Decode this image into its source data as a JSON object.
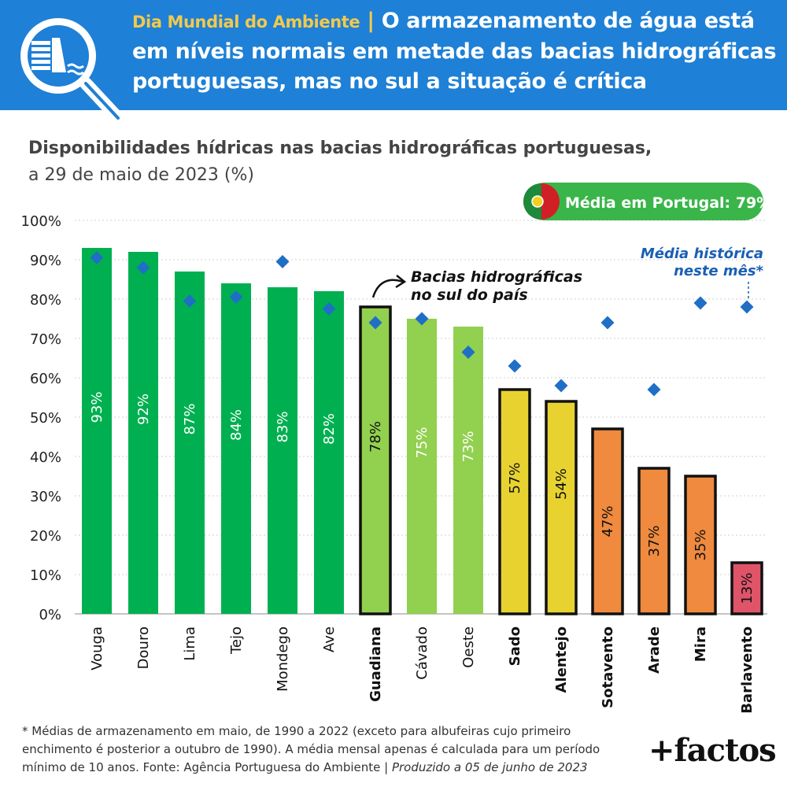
{
  "header": {
    "kicker": "Dia Mundial do Ambiente",
    "separator": "|",
    "title": "O armazenamento de água está em níveis normais em metade das bacias hidrográficas portuguesas, mas no sul a situação é crítica"
  },
  "subtitle": {
    "line1": "Disponibilidades hídricas nas bacias hidrográficas portuguesas,",
    "line2": "a 29 de maio de 2023 (%)"
  },
  "badge": {
    "label": "Média em Portugal: 79%"
  },
  "annotations": {
    "south_line1": "Bacias hidrográficas",
    "south_line2": "no sul do país",
    "hist_line1": "Média histórica",
    "hist_line2": "neste mês*"
  },
  "footnote": {
    "text": "* Médias de armazenamento em maio, de 1990 a 2022 (exceto para albufeiras cujo primeiro enchimento é posterior a outubro de 1990). A média mensal apenas é calculada para um período mínimo de 10 anos. Fonte: Agência Portuguesa do Ambiente | ",
    "produced": "Produzido a 05 de junho de 2023"
  },
  "brand": "+factos",
  "colors": {
    "header_bg": "#1e80d6",
    "kicker": "#f2c94c",
    "dark_green": "#00b050",
    "light_green": "#92d050",
    "yellow": "#e8d230",
    "orange": "#ef8a3e",
    "red": "#e0546a",
    "marker": "#1f6fc5",
    "annotation_blue": "#1a5fb4"
  },
  "chart_data": {
    "type": "bar",
    "categories": [
      "Vouga",
      "Douro",
      "Lima",
      "Tejo",
      "Mondego",
      "Ave",
      "Guadiana",
      "Cávado",
      "Oeste",
      "Sado",
      "Alentejo",
      "Sotavento",
      "Arade",
      "Mira",
      "Barlavento"
    ],
    "series": [
      {
        "values": [
          93,
          92,
          87,
          84,
          83,
          82,
          78,
          75,
          73,
          57,
          54,
          47,
          37,
          35,
          13
        ],
        "labels": [
          "93%",
          "92%",
          "87%",
          "84%",
          "83%",
          "82%",
          "78%",
          "75%",
          "73%",
          "57%",
          "54%",
          "47%",
          "37%",
          "35%",
          "13%"
        ]
      },
      {
        "name": "Média histórica neste mês*",
        "values": [
          90.5,
          88,
          79.5,
          80.5,
          89.5,
          77.5,
          74,
          75,
          66.5,
          63,
          58,
          74,
          57,
          79,
          78
        ]
      }
    ],
    "south_basins": [
      "Guadiana",
      "Sado",
      "Alentejo",
      "Sotavento",
      "Arade",
      "Mira",
      "Barlavento"
    ],
    "bar_colors": [
      "dark_green",
      "dark_green",
      "dark_green",
      "dark_green",
      "dark_green",
      "dark_green",
      "light_green",
      "light_green",
      "light_green",
      "yellow",
      "yellow",
      "orange",
      "orange",
      "orange",
      "red"
    ],
    "y_ticks": [
      "0%",
      "10%",
      "20%",
      "30%",
      "40%",
      "50%",
      "60%",
      "70%",
      "80%",
      "90%",
      "100%"
    ],
    "ylim": [
      0,
      100
    ],
    "grid": true
  }
}
